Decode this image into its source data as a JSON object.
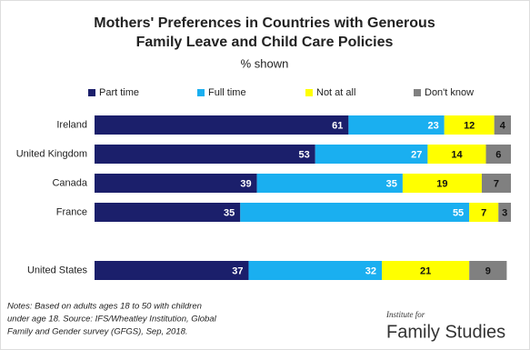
{
  "chart_data": {
    "type": "stacked-bar-horizontal",
    "title": [
      "Mothers' Preferences in Countries with Generous",
      "Family Leave and Child Care Policies"
    ],
    "subtitle": "% shown",
    "categories": [
      "Ireland",
      "United Kingdom",
      "Canada",
      "France",
      "United States"
    ],
    "series": [
      {
        "name": "Part time",
        "color": "#1b1f6b",
        "values": [
          61,
          53,
          39,
          35,
          37
        ]
      },
      {
        "name": "Full time",
        "color": "#1aaff0",
        "values": [
          23,
          27,
          35,
          55,
          32
        ]
      },
      {
        "name": "Not at all",
        "color": "#ffff00",
        "values": [
          12,
          14,
          19,
          7,
          21
        ]
      },
      {
        "name": "Don't know",
        "color": "#808080",
        "values": [
          4,
          6,
          7,
          3,
          9
        ]
      }
    ],
    "notes": [
      "Notes: Based on adults ages 18 to 50 with children",
      "under age 18. Source: IFS/Wheatley Institution,  Global",
      "Family and Gender survey (GFGS), Sep, 2018."
    ],
    "logo": [
      "Institute for",
      "Family Studies"
    ]
  }
}
